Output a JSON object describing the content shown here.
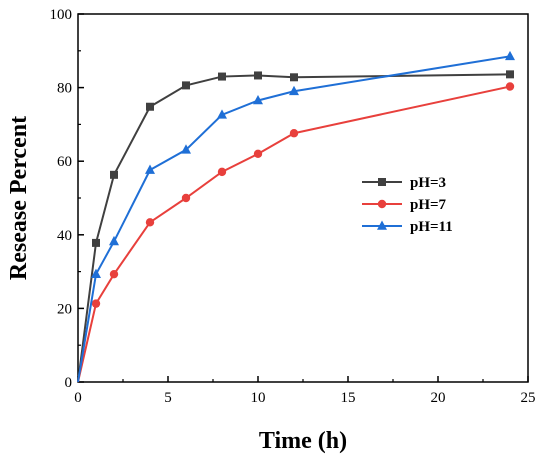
{
  "chart_data": {
    "type": "line",
    "title": "",
    "xlabel": "Time (h)",
    "ylabel": "Resease Percent",
    "xlim": [
      0,
      25
    ],
    "ylim": [
      0,
      100
    ],
    "xticks": [
      0,
      5,
      10,
      15,
      20,
      25
    ],
    "yticks": [
      0,
      20,
      40,
      60,
      80,
      100
    ],
    "xtick_labels": [
      "0",
      "5",
      "10",
      "15",
      "20",
      "25"
    ],
    "ytick_labels": [
      "0",
      "20",
      "40",
      "60",
      "80",
      "100"
    ],
    "grid": false,
    "legend_position": "right-middle",
    "series": [
      {
        "name": "pH=3",
        "color": "#404040",
        "marker": "square",
        "x": [
          0,
          1,
          2,
          4,
          6,
          8,
          10,
          12,
          24
        ],
        "y": [
          0,
          37.8,
          56.3,
          74.8,
          80.6,
          83.0,
          83.3,
          82.8,
          83.6
        ]
      },
      {
        "name": "pH=7",
        "color": "#e8403c",
        "marker": "circle",
        "x": [
          0,
          1,
          2,
          4,
          6,
          8,
          10,
          12,
          24
        ],
        "y": [
          0,
          21.3,
          29.3,
          43.4,
          50.0,
          57.1,
          62.0,
          67.6,
          80.3
        ]
      },
      {
        "name": "pH=11",
        "color": "#1f6fd6",
        "marker": "triangle",
        "x": [
          0,
          1,
          2,
          4,
          6,
          8,
          10,
          12,
          24
        ],
        "y": [
          0,
          29.3,
          38.2,
          57.6,
          63.1,
          72.6,
          76.5,
          79.0,
          88.5
        ]
      }
    ]
  }
}
